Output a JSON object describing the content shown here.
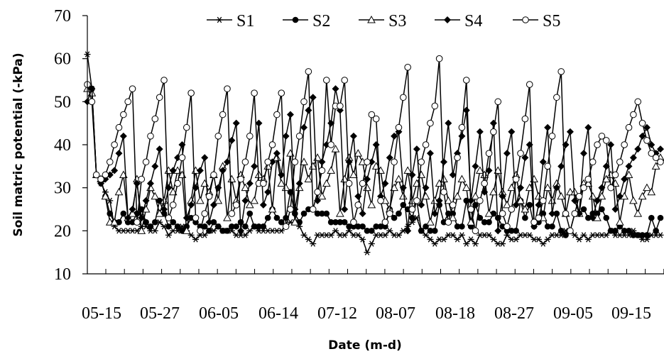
{
  "chart_data": {
    "type": "line",
    "xlabel": "Date (m-d)",
    "ylabel": "Soil matric potential (-kPa)",
    "ylim": [
      10,
      70
    ],
    "yticks": [
      10,
      20,
      30,
      40,
      50,
      60,
      70
    ],
    "xtick_labels": [
      "05-15",
      "05-27",
      "06-05",
      "06-14",
      "07-12",
      "08-07",
      "08-18",
      "08-27",
      "09-05",
      "09-15"
    ],
    "legend_position": "top",
    "grid": false,
    "series": [
      {
        "name": "S1",
        "marker": "asterisk",
        "values": [
          61,
          53,
          33,
          31,
          29,
          27,
          21,
          20,
          20,
          20,
          20,
          20,
          21,
          21,
          20,
          20,
          22,
          21,
          19,
          20,
          20,
          21,
          20,
          19,
          18,
          19,
          19,
          20,
          20,
          21,
          20,
          20,
          20,
          19,
          19,
          19,
          20,
          21,
          20,
          20,
          20,
          20,
          20,
          20,
          21,
          22,
          22,
          21,
          19,
          18,
          17,
          19,
          19,
          19,
          19,
          20,
          19,
          19,
          20,
          19,
          19,
          18,
          15,
          17,
          19,
          19,
          19,
          20,
          19,
          19,
          20,
          21,
          22,
          23,
          20,
          19,
          18,
          17,
          18,
          18,
          19,
          19,
          18,
          19,
          17,
          18,
          17,
          19,
          19,
          19,
          18,
          17,
          17,
          19,
          18,
          18,
          19,
          19,
          19,
          18,
          18,
          17,
          18,
          19,
          19,
          19,
          20,
          20,
          19,
          18,
          19,
          18,
          19,
          19,
          19,
          19,
          20,
          19,
          19,
          19,
          19,
          20,
          19,
          18,
          18,
          19,
          19,
          19
        ]
      },
      {
        "name": "S2",
        "marker": "filled-circle",
        "values": [
          54,
          53,
          33,
          32,
          28,
          24,
          22,
          22,
          24,
          22,
          22,
          24,
          25,
          22,
          21,
          22,
          27,
          24,
          21,
          22,
          21,
          20,
          21,
          23,
          22,
          21,
          21,
          20,
          22,
          21,
          20,
          20,
          21,
          21,
          22,
          21,
          24,
          21,
          21,
          21,
          23,
          25,
          23,
          22,
          23,
          29,
          24,
          22,
          24,
          25,
          25,
          24,
          24,
          24,
          22,
          22,
          22,
          22,
          21,
          21,
          21,
          21,
          20,
          20,
          21,
          21,
          21,
          25,
          23,
          24,
          26,
          25,
          23,
          27,
          20,
          21,
          20,
          20,
          26,
          22,
          24,
          24,
          21,
          21,
          27,
          21,
          26,
          23,
          22,
          22,
          24,
          23,
          21,
          20,
          20,
          20,
          27,
          23,
          26,
          21,
          22,
          24,
          21,
          21,
          24,
          20,
          19,
          20,
          24,
          24,
          25,
          23,
          24,
          24,
          25,
          23,
          20,
          20,
          21,
          20,
          20,
          19,
          19,
          19,
          19,
          23,
          20,
          23
        ]
      },
      {
        "name": "S3",
        "marker": "open-triangle",
        "values": [
          53,
          52,
          33,
          32,
          28,
          22,
          22,
          29,
          33,
          23,
          24,
          32,
          20,
          25,
          30,
          28,
          24,
          27,
          34,
          29,
          34,
          33,
          20,
          27,
          34,
          27,
          31,
          29,
          33,
          27,
          35,
          23,
          32,
          27,
          33,
          30,
          26,
          27,
          33,
          32,
          35,
          25,
          37,
          31,
          30,
          38,
          22,
          30,
          36,
          32,
          35,
          37,
          28,
          31,
          34,
          39,
          24,
          32,
          37,
          33,
          38,
          36,
          30,
          26,
          35,
          34,
          27,
          25,
          30,
          32,
          28,
          34,
          27,
          31,
          33,
          28,
          22,
          27,
          31,
          32,
          27,
          23,
          28,
          32,
          30,
          22,
          28,
          34,
          33,
          24,
          29,
          34,
          29,
          26,
          30,
          33,
          27,
          25,
          30,
          32,
          28,
          23,
          30,
          27,
          31,
          28,
          24,
          29,
          29,
          24,
          31,
          31,
          28,
          23,
          28,
          32,
          33,
          31,
          22,
          28,
          33,
          27,
          24,
          28,
          30,
          29,
          35,
          37
        ]
      },
      {
        "name": "S4",
        "marker": "filled-diamond",
        "values": [
          50,
          53,
          33,
          31,
          32,
          33,
          34,
          38,
          42,
          23,
          25,
          31,
          23,
          27,
          31,
          35,
          39,
          25,
          30,
          34,
          37,
          40,
          23,
          26,
          30,
          34,
          37,
          22,
          26,
          30,
          34,
          36,
          41,
          45,
          20,
          27,
          31,
          35,
          45,
          26,
          29,
          36,
          38,
          33,
          42,
          47,
          25,
          31,
          44,
          48,
          51,
          27,
          36,
          40,
          45,
          53,
          48,
          25,
          36,
          42,
          28,
          24,
          32,
          36,
          40,
          28,
          31,
          37,
          42,
          43,
          30,
          20,
          33,
          39,
          26,
          30,
          38,
          24,
          27,
          36,
          45,
          33,
          38,
          42,
          48,
          27,
          35,
          43,
          29,
          34,
          45,
          20,
          28,
          38,
          43,
          26,
          30,
          37,
          40,
          21,
          26,
          36,
          44,
          24,
          30,
          35,
          40,
          43,
          27,
          24,
          38,
          44,
          23,
          27,
          30,
          35,
          40,
          25,
          28,
          32,
          35,
          37,
          39,
          42,
          44,
          40,
          38,
          39
        ]
      },
      {
        "name": "S5",
        "marker": "open-circle",
        "values": [
          54,
          50,
          33,
          32,
          33,
          36,
          40,
          44,
          47,
          50,
          53,
          22,
          32,
          36,
          42,
          46,
          51,
          55,
          23,
          26,
          31,
          37,
          44,
          52,
          23,
          20,
          24,
          28,
          33,
          42,
          47,
          53,
          24,
          26,
          32,
          36,
          42,
          52,
          31,
          31,
          36,
          40,
          47,
          52,
          21,
          25,
          36,
          42,
          50,
          57,
          25,
          29,
          34,
          55,
          40,
          49,
          49,
          55,
          31,
          22,
          26,
          31,
          36,
          47,
          46,
          27,
          22,
          24,
          36,
          44,
          51,
          58,
          25,
          27,
          36,
          40,
          45,
          49,
          60,
          29,
          22,
          26,
          37,
          44,
          55,
          25,
          20,
          27,
          31,
          38,
          43,
          50,
          24,
          21,
          25,
          32,
          38,
          46,
          54,
          22,
          23,
          27,
          35,
          42,
          51,
          57,
          24,
          20,
          24,
          28,
          30,
          32,
          36,
          40,
          42,
          41,
          30,
          33,
          36,
          40,
          44,
          47,
          50,
          45,
          41,
          38,
          37,
          36
        ]
      }
    ]
  }
}
